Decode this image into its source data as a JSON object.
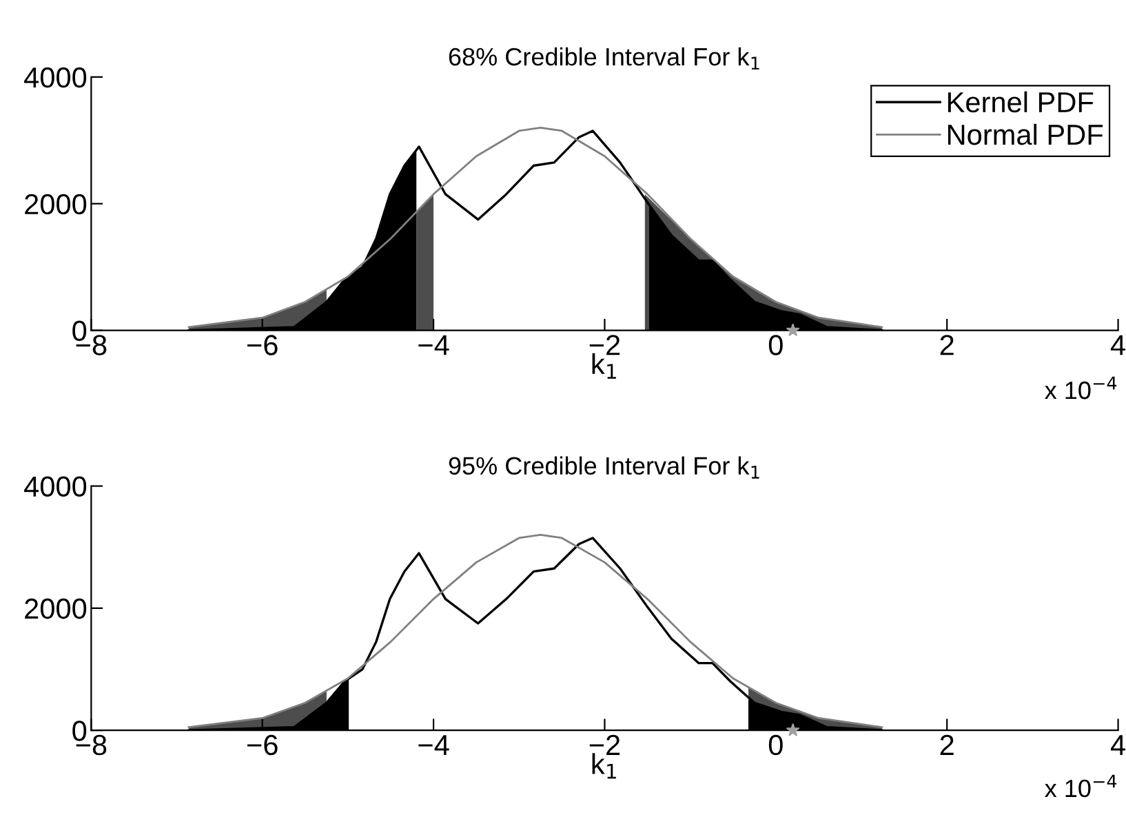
{
  "chart_data": [
    {
      "type": "line",
      "title": "68% Credible Interval For k$_{1}$",
      "xlabel": "k$_{1}$",
      "xlim": [
        -8,
        4
      ],
      "xticks": [
        -8,
        -6,
        -4,
        -2,
        0,
        2,
        4
      ],
      "ylim": [
        0,
        4000
      ],
      "yticks": [
        0,
        2000,
        4000
      ],
      "grid": false,
      "legend": "top right",
      "annotations": [
        "x 10$^{−4}$"
      ],
      "series": [
        {
          "type": "area",
          "color": "#4d4d4d",
          "x": [
            -6.86,
            -6,
            -5.5,
            -5.25
          ],
          "values": [
            50,
            200,
            450,
            650
          ]
        },
        {
          "type": "area",
          "color": "#4d4d4d",
          "x": [
            -4.2,
            -4.0
          ],
          "values": [
            1850,
            2150
          ]
        },
        {
          "type": "area",
          "color": "#4d4d4d",
          "x": [
            -1.53,
            -1,
            -0.5,
            0,
            0.5,
            1,
            1.24
          ],
          "values": [
            2150,
            1450,
            850,
            450,
            200,
            100,
            50
          ]
        },
        {
          "type": "area",
          "color": "#000000",
          "x": [
            -6.86,
            -5.63,
            -5.25,
            -5.04,
            -4.83,
            -4.67,
            -4.51,
            -4.34,
            -4.2
          ],
          "values": [
            0,
            50,
            450,
            800,
            1000,
            1450,
            2150,
            2600,
            2850
          ]
        },
        {
          "type": "area",
          "color": "#000000",
          "x": [
            -1.48,
            -1.22,
            -0.9,
            -0.74,
            -0.53,
            -0.25,
            0.07,
            0.28,
            0.6,
            1.24
          ],
          "values": [
            2000,
            1500,
            1100,
            1100,
            800,
            450,
            300,
            250,
            50,
            0
          ]
        },
        {
          "name": "Kernel PDF",
          "color": "#000000",
          "x": [
            -6.86,
            -5.63,
            -5.25,
            -5.04,
            -4.83,
            -4.67,
            -4.51,
            -4.34,
            -4.17,
            -3.86,
            -3.48,
            -3.15,
            -2.83,
            -2.59,
            -2.3,
            -2.14,
            -1.82,
            -1.49,
            -1.22,
            -0.9,
            -0.74,
            -0.53,
            -0.25,
            0.07,
            0.28,
            0.6,
            1.24
          ],
          "values": [
            0,
            50,
            450,
            800,
            1000,
            1450,
            2150,
            2600,
            2900,
            2150,
            1750,
            2150,
            2600,
            2650,
            3050,
            3150,
            2650,
            2000,
            1500,
            1100,
            1100,
            800,
            450,
            300,
            250,
            50,
            0
          ]
        },
        {
          "name": "Normal PDF",
          "color": "#808080",
          "x": [
            -6.86,
            -6,
            -5.5,
            -5,
            -4.5,
            -4,
            -3.5,
            -3,
            -2.75,
            -2.5,
            -2,
            -1.5,
            -1,
            -0.5,
            0,
            0.5,
            1,
            1.24
          ],
          "values": [
            50,
            200,
            450,
            850,
            1450,
            2150,
            2750,
            3150,
            3200,
            3150,
            2750,
            2150,
            1450,
            850,
            450,
            200,
            100,
            50
          ]
        },
        {
          "type": "scatter",
          "color": "#a0a0a0",
          "marker": "star",
          "x": [
            0.2
          ],
          "values": [
            0
          ]
        }
      ]
    },
    {
      "type": "line",
      "title": "95% Credible Interval For k$_{1}$",
      "xlabel": "k$_{1}$",
      "xlim": [
        -8,
        4
      ],
      "xticks": [
        -8,
        -6,
        -4,
        -2,
        0,
        2,
        4
      ],
      "ylim": [
        0,
        4000
      ],
      "yticks": [
        0,
        2000,
        4000
      ],
      "grid": false,
      "annotations": [
        "x 10$^{−4}$"
      ],
      "series": [
        {
          "type": "area",
          "color": "#4d4d4d",
          "x": [
            -6.86,
            -6,
            -5.5,
            -5.25
          ],
          "values": [
            50,
            200,
            450,
            650
          ]
        },
        {
          "type": "area",
          "color": "#4d4d4d",
          "x": [
            -0.32,
            0,
            0.5,
            1,
            1.24
          ],
          "values": [
            700,
            450,
            200,
            100,
            50
          ]
        },
        {
          "type": "area",
          "color": "#000000",
          "x": [
            -6.86,
            -5.63,
            -5.25,
            -5.04,
            -4.99
          ],
          "values": [
            0,
            50,
            450,
            800,
            850
          ]
        },
        {
          "type": "area",
          "color": "#000000",
          "x": [
            -0.32,
            -0.25,
            0.07,
            0.28,
            0.6,
            1.24
          ],
          "values": [
            500,
            450,
            300,
            250,
            50,
            0
          ]
        },
        {
          "color": "#000000",
          "x": [
            -6.86,
            -5.63,
            -5.25,
            -5.04,
            -4.83,
            -4.67,
            -4.51,
            -4.34,
            -4.17,
            -3.86,
            -3.48,
            -3.15,
            -2.83,
            -2.59,
            -2.3,
            -2.14,
            -1.82,
            -1.49,
            -1.22,
            -0.9,
            -0.74,
            -0.53,
            -0.25,
            0.07,
            0.28,
            0.6,
            1.24
          ],
          "values": [
            0,
            50,
            450,
            800,
            1000,
            1450,
            2150,
            2600,
            2900,
            2150,
            1750,
            2150,
            2600,
            2650,
            3050,
            3150,
            2650,
            2000,
            1500,
            1100,
            1100,
            800,
            450,
            300,
            250,
            50,
            0
          ]
        },
        {
          "color": "#808080",
          "x": [
            -6.86,
            -6,
            -5.5,
            -5,
            -4.5,
            -4,
            -3.5,
            -3,
            -2.75,
            -2.5,
            -2,
            -1.5,
            -1,
            -0.5,
            0,
            0.5,
            1,
            1.24
          ],
          "values": [
            50,
            200,
            450,
            850,
            1450,
            2150,
            2750,
            3150,
            3200,
            3150,
            2750,
            2150,
            1450,
            850,
            450,
            200,
            100,
            50
          ]
        },
        {
          "type": "scatter",
          "color": "#a0a0a0",
          "marker": "star",
          "x": [
            0.2
          ],
          "values": [
            0
          ]
        }
      ]
    }
  ]
}
